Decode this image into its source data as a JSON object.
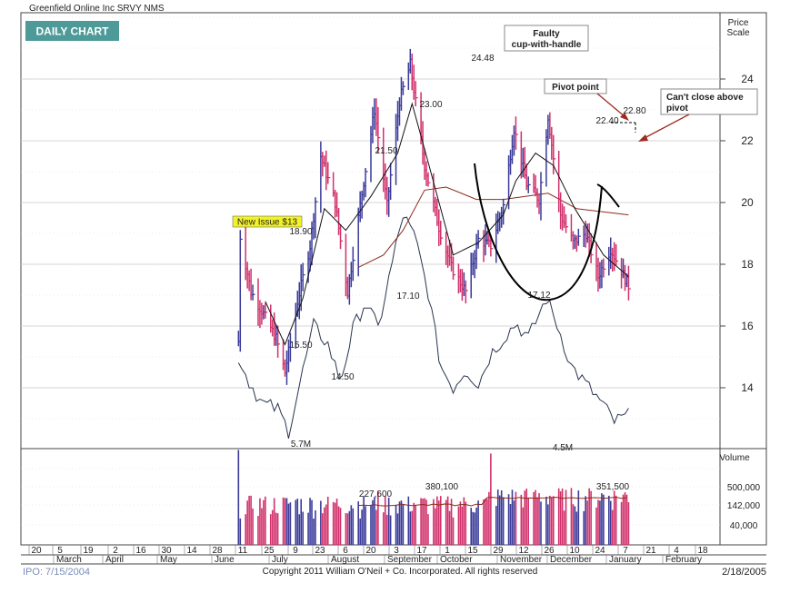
{
  "header": {
    "title": "Greenfield Online Inc  SRVY  NMS",
    "badge": "DAILY CHART",
    "price_scale_label": [
      "Price",
      "Scale"
    ],
    "volume_label": "Volume"
  },
  "footer": {
    "ipo": "IPO: 7/15/2004",
    "copyright": "Copyright 2011 William O'Neil + Co. Incorporated. All rights reserved",
    "date": "2/18/2005"
  },
  "colors": {
    "up_bar": "#3a3a9a",
    "down_bar": "#d0306a",
    "ma_50": "#8b2a1a",
    "ma_10": "#111111",
    "rs_line": "#2a3450",
    "badge_bg": "#4d9a98",
    "arrow": "#9e2a22",
    "new_issue_bg": "#f2f22a"
  },
  "annotations": {
    "faulty": [
      "Faulty",
      "cup-with-handle"
    ],
    "pivot": "Pivot point",
    "cant_close": [
      "Can't close above",
      "pivot"
    ],
    "new_issue": "New Issue $13"
  },
  "chart_data": {
    "type": "ohlc",
    "y_axis": {
      "ticks": [
        14,
        16,
        18,
        20,
        22,
        24
      ],
      "range": [
        12.1,
        26.3
      ]
    },
    "volume_axis": {
      "ticks": [
        "500,000",
        "142,000",
        "40,000"
      ]
    },
    "price_labels": [
      "18.90",
      "15.50",
      "14.50",
      "21.50",
      "17.10",
      "23.00",
      "24.48",
      "17.12",
      "22.40",
      "22.80"
    ],
    "volume_labels": [
      "5.7M",
      "227,600",
      "380,100",
      "4.5M",
      "351,500"
    ],
    "x_axis": {
      "days": [
        "20",
        "5",
        "19",
        "2",
        "16",
        "30",
        "14",
        "28",
        "11",
        "25",
        "9",
        "23",
        "6",
        "20",
        "3",
        "17",
        "1",
        "15",
        "29",
        "12",
        "26",
        "10",
        "24",
        "7",
        "21",
        "4",
        "18"
      ],
      "months": [
        "March",
        "April",
        "May",
        "June",
        "July",
        "August",
        "September",
        "October",
        "November",
        "December",
        "January",
        "February"
      ]
    },
    "price_path": [
      [
        "2004-07-15",
        15.5
      ],
      [
        "2004-07-16",
        18.9
      ],
      [
        "2004-07-22",
        17.1
      ],
      [
        "2004-07-28",
        16.5
      ],
      [
        "2004-08-05",
        15.6
      ],
      [
        "2004-08-10",
        14.5
      ],
      [
        "2004-08-17",
        16.8
      ],
      [
        "2004-08-24",
        18.6
      ],
      [
        "2004-08-30",
        21.5
      ],
      [
        "2004-09-07",
        20.0
      ],
      [
        "2004-09-14",
        17.1
      ],
      [
        "2004-09-22",
        20.3
      ],
      [
        "2004-09-29",
        23.0
      ],
      [
        "2004-10-06",
        19.9
      ],
      [
        "2004-10-13",
        23.3
      ],
      [
        "2004-10-19",
        24.48
      ],
      [
        "2004-10-27",
        21.2
      ],
      [
        "2004-11-04",
        19.2
      ],
      [
        "2004-11-11",
        17.9
      ],
      [
        "2004-11-19",
        17.12
      ],
      [
        "2004-11-26",
        18.8
      ],
      [
        "2004-12-03",
        18.6
      ],
      [
        "2004-12-10",
        19.9
      ],
      [
        "2004-12-16",
        22.4
      ],
      [
        "2004-12-23",
        20.6
      ],
      [
        "2004-12-30",
        20.1
      ],
      [
        "2005-01-04",
        22.8
      ],
      [
        "2005-01-11",
        19.6
      ],
      [
        "2005-01-18",
        18.7
      ],
      [
        "2005-01-25",
        19.0
      ],
      [
        "2005-02-01",
        17.6
      ],
      [
        "2005-02-08",
        18.5
      ],
      [
        "2005-02-18",
        17.3
      ]
    ],
    "moving_average_50": [
      [
        "2004-09-20",
        17.9
      ],
      [
        "2004-10-04",
        18.3
      ],
      [
        "2004-10-15",
        19.1
      ],
      [
        "2004-10-27",
        20.4
      ],
      [
        "2004-11-08",
        20.5
      ],
      [
        "2004-11-25",
        20.1
      ],
      [
        "2004-12-10",
        20.1
      ],
      [
        "2005-01-04",
        20.3
      ],
      [
        "2005-01-20",
        19.8
      ],
      [
        "2005-02-18",
        19.6
      ]
    ],
    "moving_average_10": [
      [
        "2004-07-30",
        16.8
      ],
      [
        "2004-08-10",
        15.4
      ],
      [
        "2004-08-20",
        16.9
      ],
      [
        "2004-09-01",
        19.8
      ],
      [
        "2004-09-13",
        19.1
      ],
      [
        "2004-09-27",
        20.2
      ],
      [
        "2004-10-12",
        21.6
      ],
      [
        "2004-10-20",
        23.2
      ],
      [
        "2004-10-29",
        21.3
      ],
      [
        "2004-11-12",
        18.3
      ],
      [
        "2004-11-26",
        18.7
      ],
      [
        "2004-12-10",
        19.6
      ],
      [
        "2004-12-17",
        20.7
      ],
      [
        "2004-12-28",
        21.6
      ],
      [
        "2005-01-07",
        21.2
      ],
      [
        "2005-01-19",
        19.8
      ],
      [
        "2005-02-04",
        18.3
      ],
      [
        "2005-02-18",
        17.6
      ]
    ],
    "relative_strength": [
      [
        "2004-07-15",
        15.0
      ],
      [
        "2004-07-20",
        14.3
      ],
      [
        "2004-07-28",
        13.5
      ],
      [
        "2004-08-06",
        13.3
      ],
      [
        "2004-08-12",
        12.6
      ],
      [
        "2004-08-19",
        14.3
      ],
      [
        "2004-08-26",
        16.0
      ],
      [
        "2004-09-03",
        15.4
      ],
      [
        "2004-09-10",
        14.2
      ],
      [
        "2004-09-17",
        15.9
      ],
      [
        "2004-09-24",
        16.8
      ],
      [
        "2004-10-01",
        15.9
      ],
      [
        "2004-10-08",
        17.8
      ],
      [
        "2004-10-15",
        19.6
      ],
      [
        "2004-10-22",
        18.8
      ],
      [
        "2004-10-29",
        17.1
      ],
      [
        "2004-11-05",
        14.7
      ],
      [
        "2004-11-12",
        14.0
      ],
      [
        "2004-11-19",
        14.6
      ],
      [
        "2004-11-26",
        14.1
      ],
      [
        "2004-12-03",
        15.1
      ],
      [
        "2004-12-10",
        15.6
      ],
      [
        "2004-12-17",
        16.1
      ],
      [
        "2004-12-24",
        15.6
      ],
      [
        "2005-01-03",
        16.9
      ],
      [
        "2005-01-10",
        15.9
      ],
      [
        "2005-01-17",
        14.7
      ],
      [
        "2005-01-24",
        14.2
      ],
      [
        "2005-02-03",
        13.5
      ],
      [
        "2005-02-10",
        12.9
      ],
      [
        "2005-02-18",
        13.1
      ]
    ],
    "volume_shares": [
      [
        "2004-07-15",
        5700000
      ],
      [
        "2004-08-17",
        227600
      ],
      [
        "2004-10-01",
        380100
      ],
      [
        "2004-12-03",
        4500000
      ],
      [
        "2004-12-27",
        351500
      ]
    ]
  }
}
